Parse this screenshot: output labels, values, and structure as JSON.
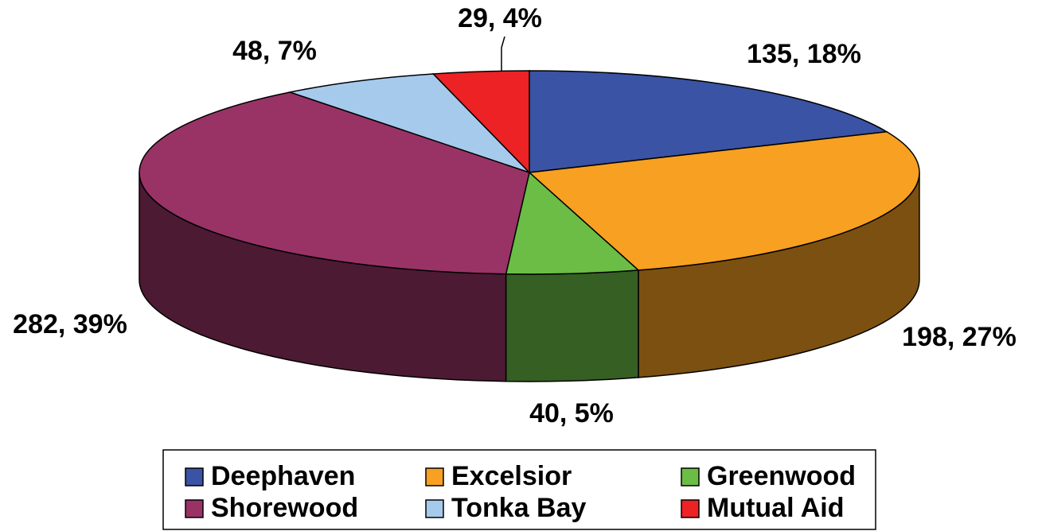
{
  "chart_data": {
    "type": "pie",
    "categories": [
      "Deephaven",
      "Excelsior",
      "Greenwood",
      "Shorewood",
      "Tonka Bay",
      "Mutual Aid"
    ],
    "values": [
      135,
      198,
      40,
      282,
      48,
      29
    ],
    "value_labels": [
      "135, 18%",
      "198, 27%",
      "40, 5%",
      "282, 39%",
      "48, 7%",
      "29, 4%"
    ],
    "colors": [
      "#3a53a4",
      "#f7a021",
      "#6bbd45",
      "#993366",
      "#a6caec",
      "#ed2224"
    ],
    "legend": "bottom"
  }
}
